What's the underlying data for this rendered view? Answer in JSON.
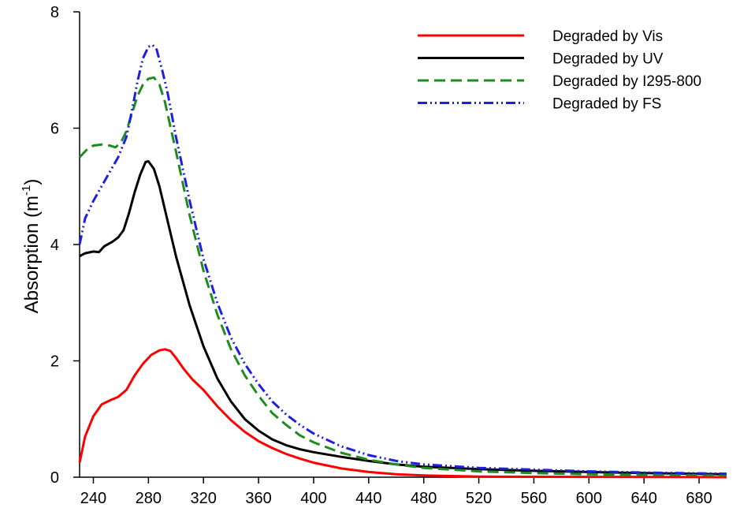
{
  "chart_data": {
    "type": "line",
    "title": "",
    "xlabel": "",
    "ylabel": "Absorption (m",
    "ylabel_sup": "-1",
    "ylabel_close": ")",
    "xlim": [
      230,
      700
    ],
    "ylim": [
      0,
      8
    ],
    "x_ticks": [
      240,
      280,
      320,
      360,
      400,
      440,
      480,
      520,
      560,
      600,
      640,
      680
    ],
    "y_ticks": [
      0,
      2,
      4,
      6,
      8
    ],
    "grid": false,
    "legend_position": "top-right",
    "series": [
      {
        "name": "Degraded by Vis",
        "color": "#ff0000",
        "dash": "solid",
        "points": [
          [
            230,
            0.25
          ],
          [
            234,
            0.7
          ],
          [
            240,
            1.05
          ],
          [
            246,
            1.25
          ],
          [
            252,
            1.32
          ],
          [
            258,
            1.38
          ],
          [
            264,
            1.5
          ],
          [
            270,
            1.75
          ],
          [
            276,
            1.95
          ],
          [
            282,
            2.1
          ],
          [
            288,
            2.18
          ],
          [
            292,
            2.2
          ],
          [
            296,
            2.17
          ],
          [
            300,
            2.05
          ],
          [
            306,
            1.85
          ],
          [
            312,
            1.68
          ],
          [
            320,
            1.5
          ],
          [
            330,
            1.22
          ],
          [
            340,
            0.98
          ],
          [
            350,
            0.78
          ],
          [
            360,
            0.62
          ],
          [
            370,
            0.5
          ],
          [
            380,
            0.4
          ],
          [
            390,
            0.32
          ],
          [
            400,
            0.25
          ],
          [
            420,
            0.15
          ],
          [
            440,
            0.09
          ],
          [
            460,
            0.05
          ],
          [
            480,
            0.03
          ],
          [
            520,
            0.01
          ],
          [
            600,
            0.005
          ],
          [
            700,
            0.0
          ]
        ]
      },
      {
        "name": "Degraded by UV",
        "color": "#000000",
        "dash": "solid",
        "points": [
          [
            230,
            3.8
          ],
          [
            234,
            3.85
          ],
          [
            240,
            3.88
          ],
          [
            244,
            3.87
          ],
          [
            248,
            3.97
          ],
          [
            254,
            4.05
          ],
          [
            258,
            4.12
          ],
          [
            262,
            4.25
          ],
          [
            266,
            4.55
          ],
          [
            270,
            4.9
          ],
          [
            274,
            5.2
          ],
          [
            278,
            5.42
          ],
          [
            280,
            5.43
          ],
          [
            284,
            5.3
          ],
          [
            288,
            5.0
          ],
          [
            292,
            4.6
          ],
          [
            300,
            3.8
          ],
          [
            310,
            2.95
          ],
          [
            320,
            2.25
          ],
          [
            330,
            1.7
          ],
          [
            340,
            1.3
          ],
          [
            350,
            1.0
          ],
          [
            360,
            0.8
          ],
          [
            370,
            0.65
          ],
          [
            380,
            0.55
          ],
          [
            390,
            0.48
          ],
          [
            400,
            0.43
          ],
          [
            420,
            0.35
          ],
          [
            440,
            0.28
          ],
          [
            460,
            0.22
          ],
          [
            480,
            0.18
          ],
          [
            520,
            0.14
          ],
          [
            560,
            0.11
          ],
          [
            600,
            0.09
          ],
          [
            640,
            0.07
          ],
          [
            700,
            0.05
          ]
        ]
      },
      {
        "name": "Degraded by I295-800",
        "color": "#1e8c1e",
        "dash": "dashed",
        "points": [
          [
            230,
            5.5
          ],
          [
            236,
            5.65
          ],
          [
            240,
            5.7
          ],
          [
            246,
            5.72
          ],
          [
            252,
            5.7
          ],
          [
            256,
            5.67
          ],
          [
            260,
            5.75
          ],
          [
            264,
            5.95
          ],
          [
            268,
            6.25
          ],
          [
            272,
            6.55
          ],
          [
            276,
            6.75
          ],
          [
            280,
            6.85
          ],
          [
            284,
            6.87
          ],
          [
            288,
            6.75
          ],
          [
            292,
            6.45
          ],
          [
            300,
            5.6
          ],
          [
            310,
            4.5
          ],
          [
            320,
            3.55
          ],
          [
            330,
            2.8
          ],
          [
            340,
            2.2
          ],
          [
            350,
            1.75
          ],
          [
            360,
            1.4
          ],
          [
            370,
            1.1
          ],
          [
            380,
            0.9
          ],
          [
            390,
            0.72
          ],
          [
            400,
            0.6
          ],
          [
            420,
            0.42
          ],
          [
            440,
            0.3
          ],
          [
            460,
            0.22
          ],
          [
            480,
            0.16
          ],
          [
            520,
            0.1
          ],
          [
            560,
            0.07
          ],
          [
            600,
            0.05
          ],
          [
            640,
            0.04
          ],
          [
            700,
            0.03
          ]
        ]
      },
      {
        "name": "Degraded by FS",
        "color": "#1f1fe0",
        "dash": "dashdotdot",
        "points": [
          [
            230,
            4.0
          ],
          [
            234,
            4.45
          ],
          [
            240,
            4.75
          ],
          [
            246,
            5.0
          ],
          [
            252,
            5.25
          ],
          [
            258,
            5.5
          ],
          [
            264,
            5.85
          ],
          [
            268,
            6.3
          ],
          [
            272,
            6.8
          ],
          [
            276,
            7.2
          ],
          [
            280,
            7.4
          ],
          [
            283,
            7.43
          ],
          [
            286,
            7.35
          ],
          [
            290,
            7.0
          ],
          [
            294,
            6.6
          ],
          [
            300,
            5.85
          ],
          [
            310,
            4.75
          ],
          [
            320,
            3.75
          ],
          [
            330,
            3.0
          ],
          [
            340,
            2.4
          ],
          [
            350,
            1.95
          ],
          [
            360,
            1.6
          ],
          [
            370,
            1.3
          ],
          [
            380,
            1.08
          ],
          [
            390,
            0.9
          ],
          [
            400,
            0.75
          ],
          [
            420,
            0.53
          ],
          [
            440,
            0.38
          ],
          [
            460,
            0.28
          ],
          [
            480,
            0.22
          ],
          [
            520,
            0.16
          ],
          [
            560,
            0.13
          ],
          [
            600,
            0.1
          ],
          [
            640,
            0.08
          ],
          [
            700,
            0.06
          ]
        ]
      }
    ]
  }
}
